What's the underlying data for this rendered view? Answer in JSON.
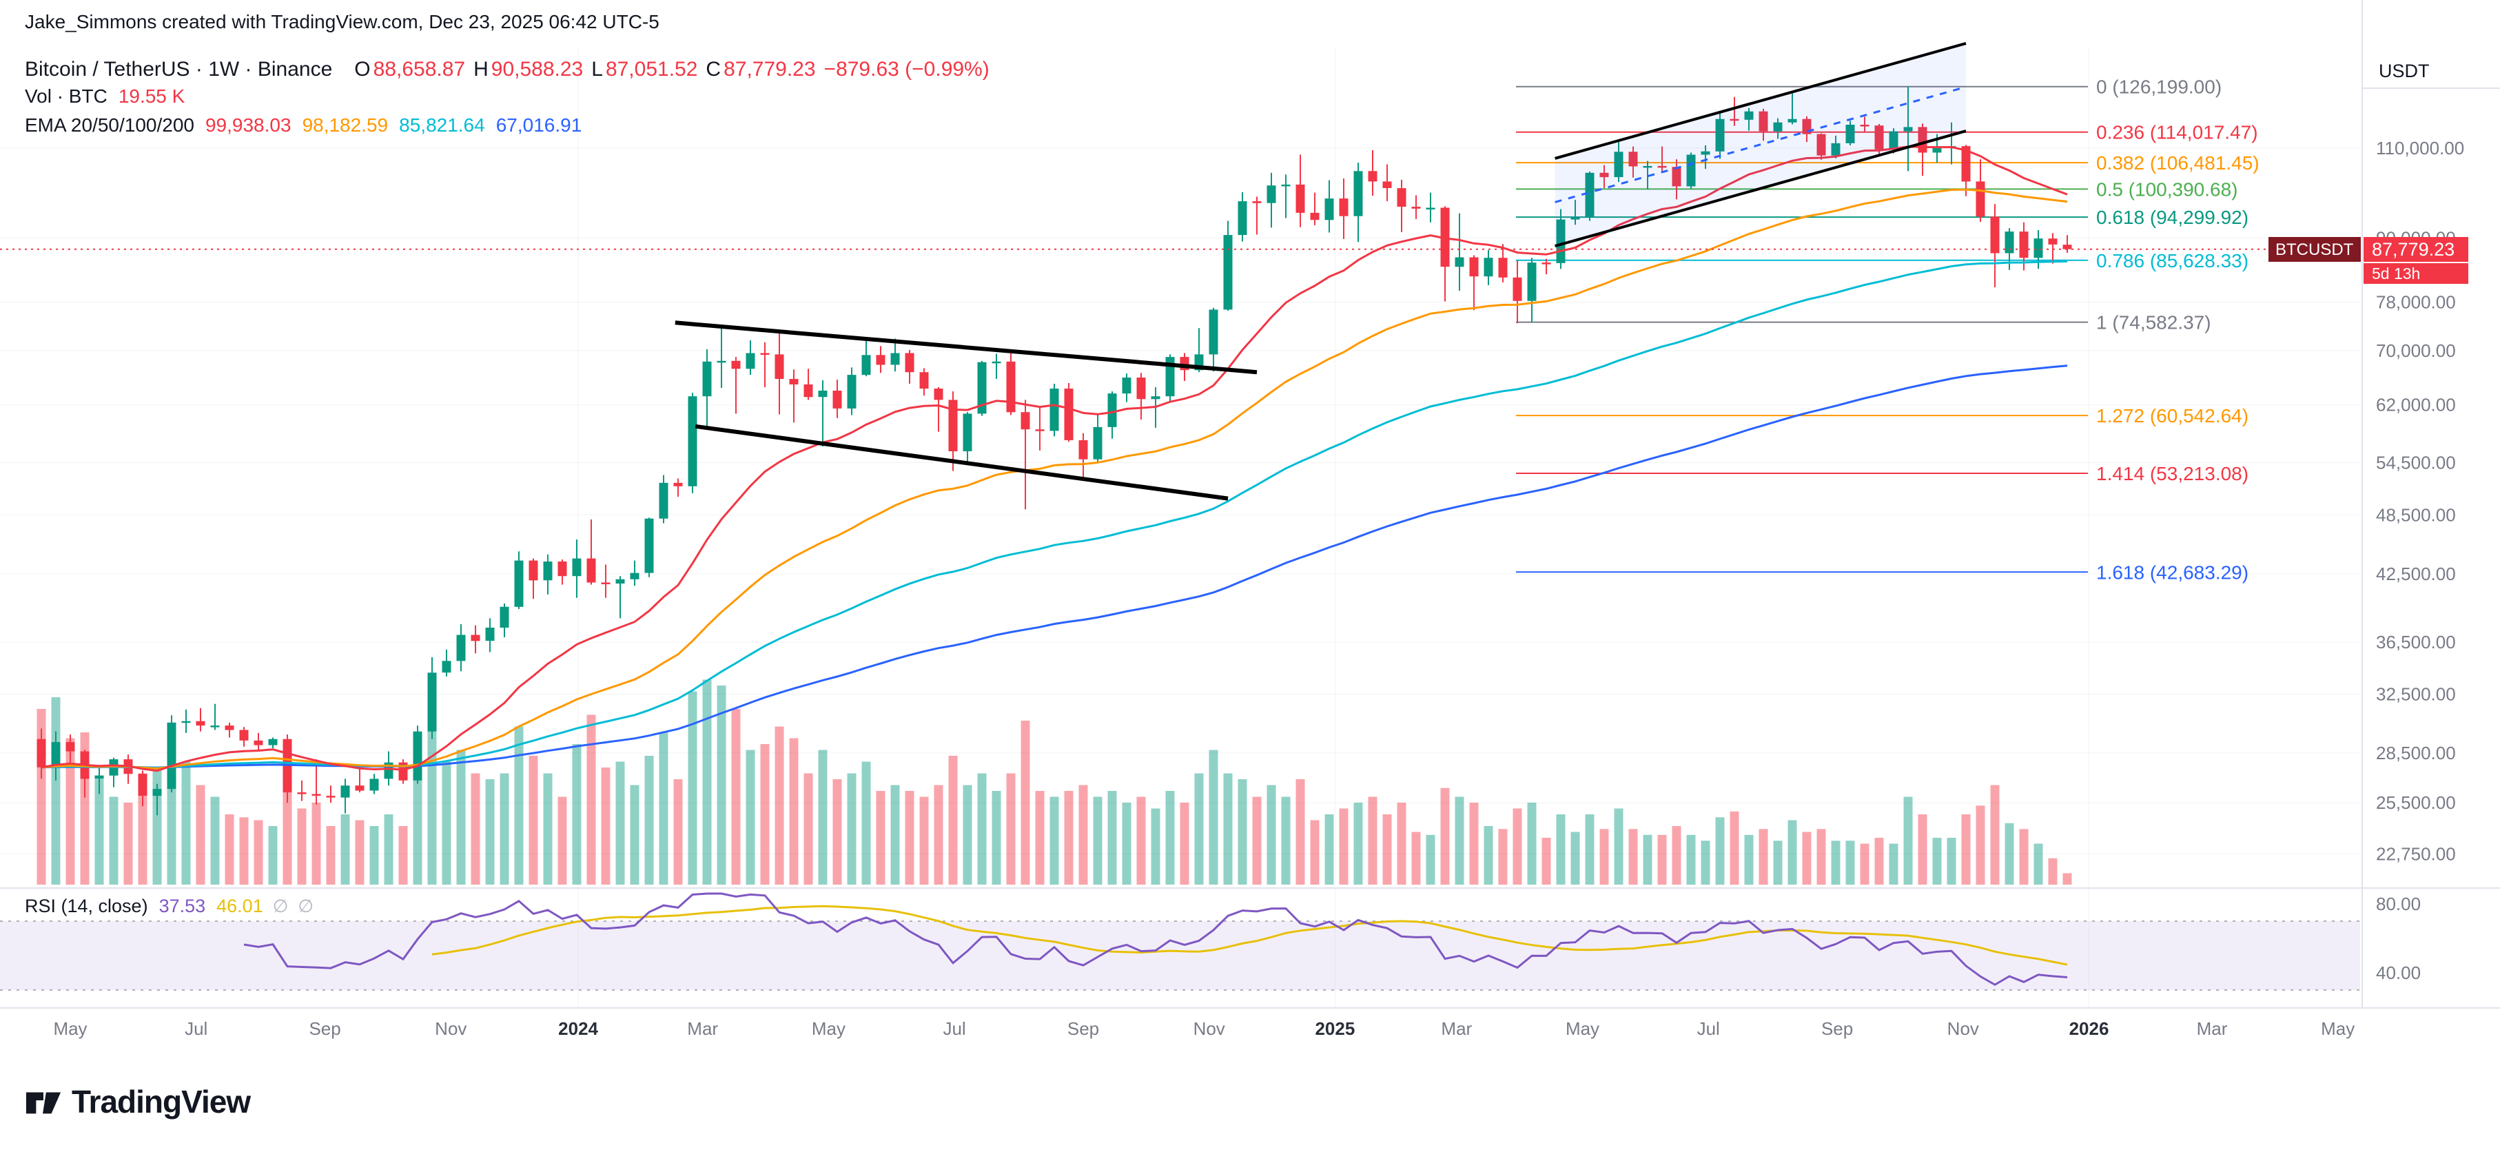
{
  "attribution": "Jake_Simmons created with TradingView.com, Dec 23, 2025 06:42 UTC-5",
  "legend": {
    "title": "Bitcoin / TetherUS · 1W · Binance",
    "o_label": "O",
    "o": "88,658.87",
    "h_label": "H",
    "h": "90,588.23",
    "l_label": "L",
    "l": "87,051.52",
    "c_label": "C",
    "c": "87,779.23",
    "change": "−879.63 (−0.99%)",
    "vol_label": "Vol · BTC",
    "vol_value": "19.55 K",
    "ema_label": "EMA 20/50/100/200",
    "ema_values": [
      "99,938.03",
      "98,182.59",
      "85,821.64",
      "67,016.91"
    ]
  },
  "rsi_legend": {
    "label": "RSI (14, close)",
    "value": "37.53",
    "ma": "46.01",
    "empty": "∅"
  },
  "price_axis": {
    "currency": "USDT"
  },
  "badge": {
    "symbol": "BTCUSDT",
    "price": "87,779.23",
    "countdown": "5d 13h"
  },
  "footer": {
    "logo": "TradingView"
  },
  "colors": {
    "up": "#089981",
    "down": "#f23645",
    "vol_up": "rgba(8,153,129,0.45)",
    "vol_down": "rgba(242,54,69,0.45)",
    "ema20": "#f23645",
    "ema50": "#ff9800",
    "ema100": "#00bcd4",
    "ema200": "#2962ff",
    "rsi": "#7e57c2",
    "rsi_ma": "#e7c009",
    "rsi_band": "rgba(126,87,194,0.10)",
    "badge_dark": "#801922",
    "muted": "#787b86",
    "text": "#131722",
    "grid": "rgba(42,46,57,0.06)",
    "separator": "#e0e3eb"
  },
  "chart_data": {
    "type": "candlestick",
    "pair": "BTC/USDT",
    "exchange": "Binance",
    "timeframe": "1W",
    "scale": "log",
    "ohlc_current": {
      "o": 88658.87,
      "h": 90588.23,
      "l": 87051.52,
      "c": 87779.23,
      "change": -879.63,
      "change_pct": -0.99
    },
    "volume_current_k_btc": 19.55,
    "ema_current": [
      99938.03,
      98182.59,
      85821.64,
      67016.91
    ],
    "rsi_current": 37.53,
    "rsi_ma_current": 46.01,
    "current_price": 87779.23,
    "weeks": [
      [
        29.4,
        30.1,
        26.9,
        27.6,
        300
      ],
      [
        27.6,
        29.9,
        26.8,
        29.2,
        320
      ],
      [
        29.2,
        29.7,
        27.9,
        28.6,
        250
      ],
      [
        28.6,
        28.7,
        25.8,
        26.9,
        260
      ],
      [
        26.9,
        27.6,
        26.0,
        27.1,
        180
      ],
      [
        27.1,
        28.2,
        26.4,
        28.1,
        150
      ],
      [
        28.1,
        28.4,
        26.6,
        27.2,
        140
      ],
      [
        27.2,
        27.4,
        25.3,
        25.9,
        190
      ],
      [
        25.9,
        26.6,
        24.8,
        26.3,
        200
      ],
      [
        26.3,
        31.0,
        26.1,
        30.5,
        260
      ],
      [
        30.5,
        31.4,
        29.8,
        30.6,
        210
      ],
      [
        30.6,
        31.5,
        29.9,
        30.3,
        170
      ],
      [
        30.3,
        31.8,
        30.0,
        30.3,
        150
      ],
      [
        30.3,
        30.5,
        29.5,
        30.0,
        120
      ],
      [
        30.0,
        30.2,
        28.9,
        29.3,
        115
      ],
      [
        29.3,
        29.8,
        28.6,
        29.0,
        110
      ],
      [
        29.0,
        29.5,
        28.8,
        29.4,
        100
      ],
      [
        29.4,
        29.7,
        25.5,
        26.1,
        230
      ],
      [
        26.1,
        26.8,
        25.6,
        26.0,
        130
      ],
      [
        26.0,
        28.1,
        25.4,
        25.9,
        140
      ],
      [
        25.9,
        26.5,
        25.5,
        25.8,
        100
      ],
      [
        25.8,
        26.9,
        24.9,
        26.5,
        120
      ],
      [
        26.5,
        27.5,
        26.1,
        26.2,
        110
      ],
      [
        26.2,
        27.2,
        26.0,
        26.9,
        100
      ],
      [
        26.9,
        28.6,
        26.5,
        27.9,
        120
      ],
      [
        27.9,
        28.1,
        26.6,
        26.8,
        100
      ],
      [
        26.8,
        30.3,
        26.6,
        29.9,
        190
      ],
      [
        29.9,
        35.3,
        29.4,
        34.1,
        280
      ],
      [
        34.1,
        35.9,
        33.8,
        35.0,
        210
      ],
      [
        35.0,
        38.0,
        34.2,
        37.1,
        230
      ],
      [
        37.1,
        37.9,
        35.6,
        36.6,
        190
      ],
      [
        36.6,
        38.5,
        35.7,
        37.7,
        180
      ],
      [
        37.7,
        39.8,
        36.9,
        39.5,
        190
      ],
      [
        39.5,
        44.7,
        39.3,
        43.8,
        270
      ],
      [
        43.8,
        44.0,
        40.2,
        41.9,
        220
      ],
      [
        41.9,
        44.4,
        40.6,
        43.7,
        190
      ],
      [
        43.7,
        43.9,
        41.5,
        42.3,
        150
      ],
      [
        42.3,
        45.9,
        40.3,
        44.0,
        240
      ],
      [
        44.0,
        48.0,
        41.5,
        41.7,
        290
      ],
      [
        41.7,
        43.4,
        40.3,
        41.6,
        200
      ],
      [
        41.6,
        42.3,
        38.5,
        42.0,
        210
      ],
      [
        42.0,
        43.8,
        41.4,
        42.6,
        170
      ],
      [
        42.6,
        48.2,
        42.2,
        48.1,
        220
      ],
      [
        48.1,
        53.0,
        47.6,
        52.1,
        260
      ],
      [
        52.1,
        52.6,
        50.5,
        51.7,
        180
      ],
      [
        51.7,
        63.7,
        50.9,
        63.2,
        330
      ],
      [
        63.2,
        70.2,
        59.0,
        68.3,
        350
      ],
      [
        68.3,
        73.8,
        64.4,
        68.4,
        340
      ],
      [
        68.4,
        69.0,
        60.8,
        67.2,
        300
      ],
      [
        67.2,
        71.6,
        66.3,
        69.6,
        230
      ],
      [
        69.6,
        71.3,
        64.5,
        69.4,
        240
      ],
      [
        69.4,
        72.8,
        60.7,
        65.7,
        270
      ],
      [
        65.7,
        67.1,
        59.6,
        64.9,
        250
      ],
      [
        64.9,
        67.2,
        62.7,
        63.1,
        190
      ],
      [
        63.1,
        65.5,
        56.5,
        64.0,
        230
      ],
      [
        64.0,
        65.6,
        60.2,
        61.5,
        180
      ],
      [
        61.5,
        67.4,
        60.6,
        66.3,
        190
      ],
      [
        66.3,
        71.9,
        66.1,
        69.3,
        210
      ],
      [
        69.3,
        70.7,
        66.6,
        67.8,
        160
      ],
      [
        67.8,
        71.9,
        66.8,
        69.6,
        170
      ],
      [
        69.6,
        70.1,
        65.0,
        66.7,
        160
      ],
      [
        66.7,
        67.3,
        63.3,
        64.3,
        150
      ],
      [
        64.3,
        64.5,
        58.4,
        62.7,
        170
      ],
      [
        62.7,
        63.9,
        53.5,
        55.9,
        220
      ],
      [
        55.9,
        61.0,
        54.2,
        60.8,
        170
      ],
      [
        60.8,
        68.4,
        60.5,
        68.2,
        190
      ],
      [
        68.2,
        69.5,
        65.7,
        68.3,
        160
      ],
      [
        68.3,
        70.1,
        60.6,
        61.0,
        190
      ],
      [
        61.0,
        62.7,
        49.1,
        58.7,
        280
      ],
      [
        58.7,
        61.8,
        56.0,
        58.5,
        160
      ],
      [
        58.5,
        65.0,
        57.8,
        64.3,
        150
      ],
      [
        64.3,
        65.1,
        57.1,
        57.3,
        160
      ],
      [
        57.3,
        58.2,
        52.5,
        54.9,
        170
      ],
      [
        54.9,
        60.7,
        54.5,
        59.0,
        150
      ],
      [
        59.0,
        63.9,
        57.5,
        63.6,
        160
      ],
      [
        63.6,
        66.5,
        62.4,
        65.9,
        140
      ],
      [
        65.9,
        66.6,
        60.0,
        62.8,
        150
      ],
      [
        62.8,
        64.5,
        58.9,
        63.2,
        130
      ],
      [
        63.2,
        69.4,
        62.4,
        69.0,
        160
      ],
      [
        69.0,
        69.6,
        65.4,
        67.0,
        140
      ],
      [
        67.0,
        73.6,
        66.7,
        69.4,
        190
      ],
      [
        69.4,
        77.0,
        66.8,
        76.7,
        230
      ],
      [
        76.7,
        93.5,
        76.5,
        90.6,
        190
      ],
      [
        90.6,
        99.7,
        89.3,
        97.7,
        180
      ],
      [
        97.7,
        98.7,
        90.7,
        97.3,
        150
      ],
      [
        97.3,
        104.1,
        92.1,
        101.2,
        170
      ],
      [
        101.2,
        103.7,
        94.1,
        101.4,
        150
      ],
      [
        101.4,
        108.4,
        92.2,
        95.2,
        180
      ],
      [
        95.2,
        99.6,
        92.6,
        93.7,
        110
      ],
      [
        93.7,
        102.4,
        91.1,
        98.3,
        120
      ],
      [
        98.3,
        102.8,
        89.8,
        94.5,
        130
      ],
      [
        94.5,
        106.5,
        89.2,
        104.5,
        140
      ],
      [
        104.5,
        109.5,
        98.9,
        102.1,
        150
      ],
      [
        102.1,
        106.1,
        97.7,
        100.6,
        120
      ],
      [
        100.6,
        102.5,
        91.2,
        96.5,
        140
      ],
      [
        96.5,
        99.0,
        93.9,
        96.1,
        90
      ],
      [
        96.1,
        99.6,
        93.2,
        96.3,
        85
      ],
      [
        96.3,
        96.6,
        78.1,
        84.4,
        165
      ],
      [
        84.4,
        95.1,
        80.0,
        86.2,
        150
      ],
      [
        86.2,
        86.6,
        76.6,
        82.6,
        140
      ],
      [
        82.6,
        87.6,
        81.0,
        86.1,
        100
      ],
      [
        86.1,
        88.8,
        81.5,
        82.4,
        95
      ],
      [
        82.4,
        85.6,
        74.4,
        78.2,
        130
      ],
      [
        78.2,
        86.1,
        74.5,
        85.2,
        140
      ],
      [
        85.2,
        85.9,
        83.0,
        85.1,
        80
      ],
      [
        85.1,
        96.0,
        84.0,
        93.8,
        120
      ],
      [
        93.8,
        98.0,
        92.7,
        94.3,
        90
      ],
      [
        94.3,
        104.4,
        93.5,
        104.1,
        120
      ],
      [
        104.1,
        105.9,
        100.6,
        103.1,
        95
      ],
      [
        103.1,
        112.1,
        102.0,
        109.1,
        130
      ],
      [
        109.1,
        110.4,
        103.0,
        105.6,
        95
      ],
      [
        105.6,
        106.9,
        100.3,
        105.7,
        85
      ],
      [
        105.7,
        110.4,
        104.5,
        105.5,
        85
      ],
      [
        105.5,
        107.3,
        98.1,
        101.0,
        100
      ],
      [
        101.0,
        108.9,
        100.5,
        108.4,
        85
      ],
      [
        108.4,
        110.7,
        105.0,
        109.2,
        75
      ],
      [
        109.2,
        119.0,
        107.4,
        117.4,
        115
      ],
      [
        117.4,
        123.3,
        115.6,
        117.2,
        125
      ],
      [
        117.2,
        120.3,
        114.4,
        119.4,
        85
      ],
      [
        119.4,
        120.1,
        111.8,
        114.2,
        95
      ],
      [
        114.2,
        117.6,
        112.3,
        116.5,
        75
      ],
      [
        116.5,
        124.6,
        116.0,
        117.4,
        110
      ],
      [
        117.4,
        118.1,
        111.5,
        113.5,
        90
      ],
      [
        113.5,
        113.7,
        107.2,
        108.2,
        95
      ],
      [
        108.2,
        113.1,
        107.5,
        111.2,
        75
      ],
      [
        111.2,
        116.9,
        110.7,
        115.9,
        75
      ],
      [
        115.9,
        118.0,
        114.1,
        115.7,
        70
      ],
      [
        115.7,
        116.1,
        108.6,
        109.7,
        80
      ],
      [
        109.7,
        115.0,
        108.7,
        114.2,
        70
      ],
      [
        114.2,
        126.2,
        104.5,
        115.3,
        150
      ],
      [
        115.3,
        116.2,
        103.4,
        108.9,
        120
      ],
      [
        108.9,
        113.5,
        106.5,
        110.1,
        80
      ],
      [
        110.1,
        116.5,
        106.1,
        110.5,
        80
      ],
      [
        110.5,
        110.8,
        98.8,
        102.1,
        120
      ],
      [
        102.1,
        107.3,
        93.3,
        94.4,
        135
      ],
      [
        94.4,
        97.1,
        80.6,
        87.0,
        170
      ],
      [
        87.0,
        92.0,
        83.8,
        91.3,
        105
      ],
      [
        91.3,
        93.2,
        83.7,
        86.1,
        95
      ],
      [
        86.1,
        91.6,
        84.0,
        89.9,
        70
      ],
      [
        89.9,
        91.0,
        85.0,
        88.7,
        45
      ],
      [
        88.659,
        90.588,
        87.052,
        87.779,
        19.55
      ]
    ],
    "emas": [
      {
        "period": 20,
        "color": "#f23645"
      },
      {
        "period": 50,
        "color": "#ff9800"
      },
      {
        "period": 100,
        "color": "#00bcd4"
      },
      {
        "period": 200,
        "color": "#2962ff"
      }
    ],
    "fib_levels": [
      {
        "level": 0,
        "label": "0 (126,199.00)",
        "price": 126199.0,
        "color": "#787b86"
      },
      {
        "level": 0.236,
        "label": "0.236 (114,017.47)",
        "price": 114017.47,
        "color": "#f23645"
      },
      {
        "level": 0.382,
        "label": "0.382 (106,481.45)",
        "price": 106481.45,
        "color": "#ff9800"
      },
      {
        "level": 0.5,
        "label": "0.5 (100,390.68)",
        "price": 100390.68,
        "color": "#4caf50"
      },
      {
        "level": 0.618,
        "label": "0.618 (94,299.92)",
        "price": 94299.92,
        "color": "#089981"
      },
      {
        "level": 0.786,
        "label": "0.786 (85,628.33)",
        "price": 85628.33,
        "color": "#00bcd4"
      },
      {
        "level": 1,
        "label": "1 (74,582.37)",
        "price": 74582.37,
        "color": "#787b86"
      },
      {
        "level": 1.272,
        "label": "1.272 (60,542.64)",
        "price": 60542.64,
        "color": "#ff9800"
      },
      {
        "level": 1.414,
        "label": "1.414 (53,213.08)",
        "price": 53213.08,
        "color": "#f23645"
      },
      {
        "level": 1.618,
        "label": "1.618 (42,683.29)",
        "price": 42683.29,
        "color": "#2962ff"
      }
    ],
    "drawings": [
      {
        "type": "line",
        "name": "wedge-upper-trendline",
        "pts": [
          [
            43.8,
            74500
          ],
          [
            84,
            66700
          ]
        ],
        "color": "#000000",
        "width": 6
      },
      {
        "type": "line",
        "name": "wedge-lower-trendline",
        "pts": [
          [
            45.2,
            59100
          ],
          [
            82,
            50300
          ]
        ],
        "color": "#000000",
        "width": 6
      },
      {
        "type": "channel-fill",
        "pts": [
          [
            104.6,
            107500
          ],
          [
            133,
            139000
          ],
          [
            133,
            114300
          ],
          [
            104.6,
            88400
          ]
        ],
        "color": "rgba(41,98,255,0.07)"
      },
      {
        "type": "line",
        "name": "channel-upper-line",
        "pts": [
          [
            104.6,
            107500
          ],
          [
            133,
            139000
          ]
        ],
        "color": "#000000",
        "width": 4
      },
      {
        "type": "line",
        "name": "channel-lower-line",
        "pts": [
          [
            104.6,
            88400
          ],
          [
            133,
            114300
          ]
        ],
        "color": "#000000",
        "width": 4
      },
      {
        "type": "line",
        "name": "channel-mid-line",
        "pts": [
          [
            104.6,
            97500
          ],
          [
            133,
            126100
          ]
        ],
        "color": "#2962ff",
        "width": 3,
        "dash": "10 10"
      }
    ],
    "price_ticks": [
      {
        "label": "110,000.00",
        "value": 110000
      },
      {
        "label": "90,000.00",
        "value": 90000
      },
      {
        "label": "78,000.00",
        "value": 78000
      },
      {
        "label": "70,000.00",
        "value": 70000
      },
      {
        "label": "62,000.00",
        "value": 62000
      },
      {
        "label": "54,500.00",
        "value": 54500
      },
      {
        "label": "48,500.00",
        "value": 48500
      },
      {
        "label": "42,500.00",
        "value": 42500
      },
      {
        "label": "36,500.00",
        "value": 36500
      },
      {
        "label": "32,500.00",
        "value": 32500
      },
      {
        "label": "28,500.00",
        "value": 28500
      },
      {
        "label": "25,500.00",
        "value": 25500
      },
      {
        "label": "22,750.00",
        "value": 22750
      }
    ],
    "rsi_ticks": [
      {
        "label": "80.00",
        "value": 80
      },
      {
        "label": "40.00",
        "value": 40
      }
    ],
    "time_ticks": [
      {
        "label": "May",
        "w": 2
      },
      {
        "label": "Jul",
        "w": 10.7
      },
      {
        "label": "Sep",
        "w": 19.6
      },
      {
        "label": "Nov",
        "w": 28.3
      },
      {
        "label": "2024",
        "w": 37.1,
        "year": true
      },
      {
        "label": "Mar",
        "w": 45.7
      },
      {
        "label": "May",
        "w": 54.4
      },
      {
        "label": "Jul",
        "w": 63.1
      },
      {
        "label": "Sep",
        "w": 72.0
      },
      {
        "label": "Nov",
        "w": 80.7
      },
      {
        "label": "2025",
        "w": 89.4,
        "year": true
      },
      {
        "label": "Mar",
        "w": 97.8
      },
      {
        "label": "May",
        "w": 106.5
      },
      {
        "label": "Jul",
        "w": 115.2
      },
      {
        "label": "Sep",
        "w": 124.1
      },
      {
        "label": "Nov",
        "w": 132.8
      },
      {
        "label": "2026",
        "w": 141.5,
        "year": true
      },
      {
        "label": "Mar",
        "w": 150.0
      },
      {
        "label": "May",
        "w": 158.7
      }
    ]
  }
}
